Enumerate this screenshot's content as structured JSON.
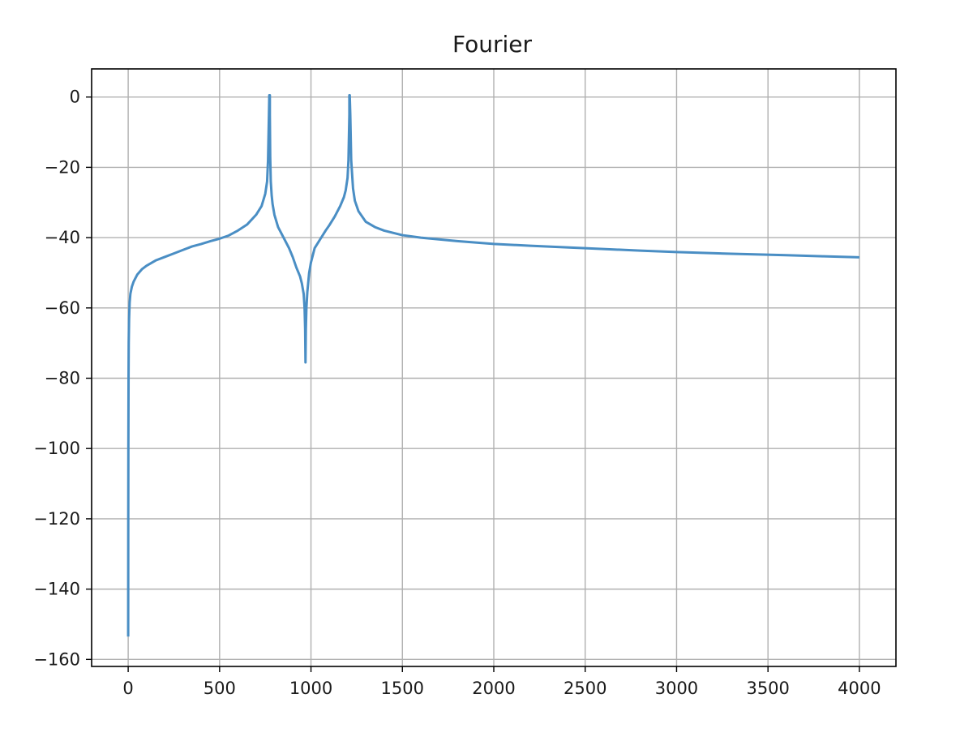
{
  "chart_data": {
    "type": "line",
    "title": "Fourier",
    "xlabel": "",
    "ylabel": "",
    "xlim": [
      -200,
      4200
    ],
    "ylim": [
      -162,
      8
    ],
    "grid": true,
    "legend": "none",
    "x_ticks": [
      0,
      500,
      1000,
      1500,
      2000,
      2500,
      3000,
      3500,
      4000
    ],
    "y_ticks": [
      0,
      -20,
      -40,
      -60,
      -80,
      -100,
      -120,
      -140,
      -160
    ],
    "x_tick_labels": [
      "0",
      "500",
      "1000",
      "1500",
      "2000",
      "2500",
      "3000",
      "3500",
      "4000"
    ],
    "y_tick_labels": [
      "0",
      "−20",
      "−40",
      "−60",
      "−80",
      "−100",
      "−120",
      "−140",
      "−160"
    ],
    "series": [
      {
        "color": "#4a8ec4",
        "x": [
          0,
          0.5,
          1,
          2,
          3,
          5,
          8,
          12,
          20,
          30,
          50,
          75,
          100,
          150,
          200,
          250,
          300,
          350,
          400,
          450,
          500,
          550,
          600,
          650,
          700,
          730,
          750,
          760,
          765,
          770,
          772,
          775,
          775,
          777,
          780,
          785,
          790,
          800,
          820,
          850,
          880,
          900,
          920,
          940,
          950,
          960,
          965,
          968,
          970,
          970,
          972,
          975,
          980,
          990,
          1000,
          1020,
          1050,
          1080,
          1100,
          1130,
          1160,
          1180,
          1190,
          1200,
          1205,
          1210,
          1210,
          1212,
          1215,
          1220,
          1230,
          1240,
          1260,
          1300,
          1350,
          1400,
          1500,
          1600,
          1700,
          1800,
          2000,
          2200,
          2500,
          2800,
          3000,
          3300,
          3600,
          3800,
          4000
        ],
        "y": [
          -153.5,
          -120,
          -100,
          -80,
          -70,
          -63,
          -58.5,
          -56,
          -54,
          -52.5,
          -50.5,
          -49,
          -48,
          -46.5,
          -45.5,
          -44.5,
          -43.5,
          -42.5,
          -41.8,
          -41,
          -40.3,
          -39.4,
          -38,
          -36.3,
          -33.5,
          -31,
          -27.5,
          -24,
          -18,
          -5,
          0.5,
          0.5,
          -5,
          -17,
          -24,
          -28,
          -30.5,
          -33.5,
          -37,
          -40,
          -43,
          -45.5,
          -48.5,
          -51,
          -53,
          -56,
          -60,
          -66,
          -75.5,
          -75.5,
          -66,
          -60,
          -55.5,
          -50,
          -47,
          -43,
          -40.5,
          -38,
          -36.5,
          -34,
          -31,
          -28.5,
          -26.5,
          -23,
          -18,
          -5,
          0.5,
          0.5,
          -5,
          -18,
          -26,
          -29.5,
          -32.5,
          -35.5,
          -37,
          -38,
          -39.3,
          -40,
          -40.5,
          -41,
          -41.8,
          -42.3,
          -43,
          -43.7,
          -44.1,
          -44.6,
          -45,
          -45.3,
          -45.6
        ]
      }
    ]
  }
}
